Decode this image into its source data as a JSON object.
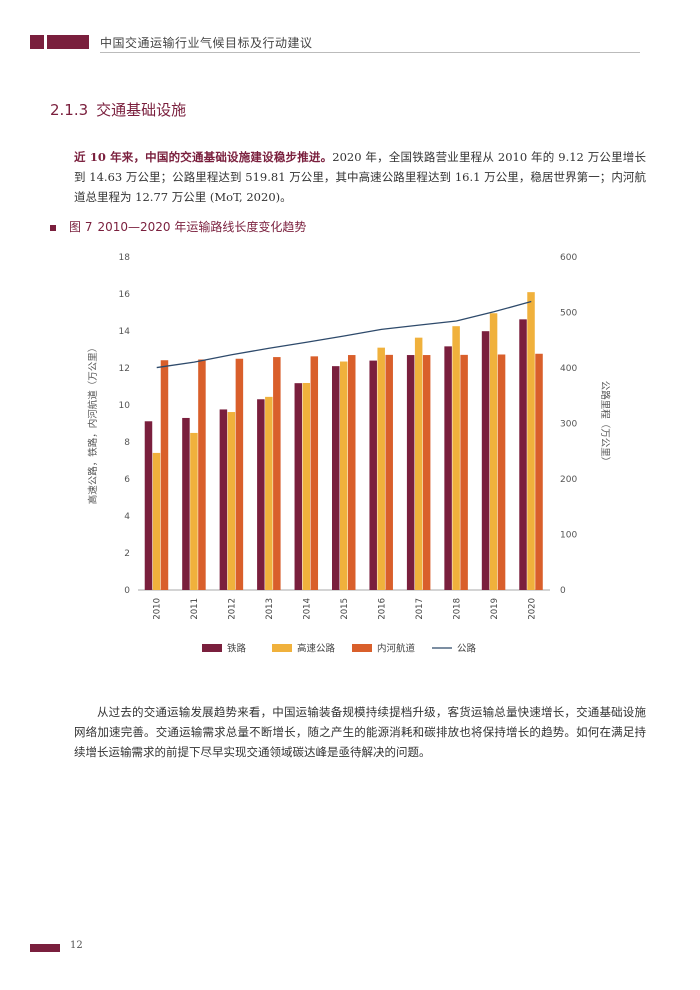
{
  "header": {
    "title": "中国交通运输行业气候目标及行动建议"
  },
  "section": {
    "number": "2.1.3",
    "title": "交通基础设施"
  },
  "paragraph1": {
    "lead": "近 10 年来，中国的交通基础设施建设稳步推进。",
    "body": "2020 年，全国铁路营业里程从 2010 年的 9.12 万公里增长到 14.63 万公里；公路里程达到 519.81 万公里，其中高速公路里程达到 16.1 万公里，稳居世界第一；内河航道总里程为 12.77 万公里 (MoT, 2020)。"
  },
  "figure": {
    "label": "图 7",
    "title": "2010—2020 年运输路线长度变化趋势"
  },
  "chart_data": {
    "type": "bar",
    "categories": [
      "2010",
      "2011",
      "2012",
      "2013",
      "2014",
      "2015",
      "2016",
      "2017",
      "2018",
      "2019",
      "2020"
    ],
    "series": [
      {
        "name": "铁路",
        "axis": "left",
        "color": "#7a1f3d",
        "values": [
          9.12,
          9.3,
          9.76,
          10.31,
          11.18,
          12.1,
          12.4,
          12.7,
          13.17,
          13.99,
          14.63
        ]
      },
      {
        "name": "高速公路",
        "axis": "left",
        "color": "#f0b13c",
        "values": [
          7.41,
          8.49,
          9.62,
          10.44,
          11.19,
          12.35,
          13.1,
          13.64,
          14.26,
          14.96,
          16.1
        ]
      },
      {
        "name": "内河航道",
        "axis": "left",
        "color": "#d95f2b",
        "values": [
          12.42,
          12.46,
          12.5,
          12.59,
          12.63,
          12.7,
          12.71,
          12.7,
          12.71,
          12.73,
          12.77
        ]
      },
      {
        "name": "公路",
        "axis": "right",
        "type": "line",
        "color": "#2e4a6b",
        "values": [
          400.8,
          410.6,
          423.8,
          435.6,
          446.4,
          457.7,
          469.6,
          477.3,
          484.7,
          501.3,
          519.81
        ]
      }
    ],
    "ylabel": "高速公路，铁路，内河航道（万公里）",
    "y2label": "公路里程（万公里）",
    "ylim": [
      0,
      18
    ],
    "y2lim": [
      0,
      600
    ],
    "yticks": [
      0,
      2,
      4,
      6,
      8,
      10,
      12,
      14,
      16,
      18
    ],
    "y2ticks": [
      0,
      100,
      200,
      300,
      400,
      500,
      600
    ],
    "grid": false,
    "legend": "bottom"
  },
  "paragraph2": {
    "body": "从过去的交通运输发展趋势来看，中国运输装备规模持续提档升级，客货运输总量快速增长，交通基础设施网络加速完善。交通运输需求总量不断增长，随之产生的能源消耗和碳排放也将保持增长的趋势。如何在满足持续增长运输需求的前提下尽早实现交通领域碳达峰是亟待解决的问题。"
  },
  "footer": {
    "page_number": "12"
  }
}
